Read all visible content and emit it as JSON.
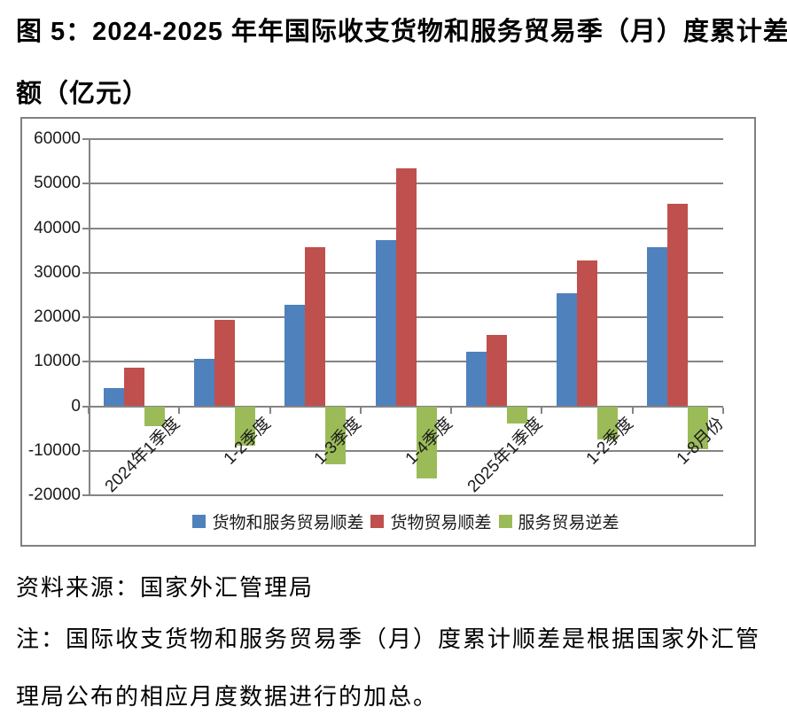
{
  "figure": {
    "title_line1": "图 5：2024-2025 年年国际收支货物和服务贸易季（月）度累计差",
    "title_line2": "额（亿元）",
    "source": "资料来源：国家外汇管理局",
    "note_line1": "注：国际收支货物和服务贸易季（月）度累计顺差是根据国家外汇管",
    "note_line2": "理局公布的相应月度数据进行的加总。"
  },
  "chart_data": {
    "type": "bar",
    "title": "2024-2025年年国际收支货物和服务贸易季（月）度累计差额（亿元）",
    "categories": [
      "2024年1季度",
      "1-2季度",
      "1-3季度",
      "1-4季度",
      "2025年1季度",
      "1-2季度",
      "1-8月份"
    ],
    "series": [
      {
        "name": "货物和服务贸易顺差",
        "color": "#4F81BD",
        "values": [
          4100,
          10600,
          22700,
          37400,
          12200,
          25300,
          35800
        ]
      },
      {
        "name": "货物贸易顺差",
        "color": "#C0504D",
        "values": [
          8700,
          19400,
          35800,
          53500,
          16100,
          32700,
          45500
        ]
      },
      {
        "name": "服务贸易逆差",
        "color": "#9BBB59",
        "values": [
          -4500,
          -8800,
          -13000,
          -16200,
          -3800,
          -7400,
          -9700
        ]
      }
    ],
    "xlabel": "",
    "ylabel": "",
    "ylim": [
      -20000,
      60000
    ],
    "ytick_interval": 10000,
    "yticks": [
      60000,
      50000,
      40000,
      30000,
      20000,
      10000,
      0,
      -10000,
      -20000
    ],
    "grid": true,
    "legend_position": "bottom-inside"
  },
  "colors": {
    "series_blue": "#4F81BD",
    "series_red": "#C0504D",
    "series_green": "#9BBB59",
    "axis_gray": "#848484",
    "frame_gray": "#808080",
    "text_black": "#1a1a1a"
  }
}
